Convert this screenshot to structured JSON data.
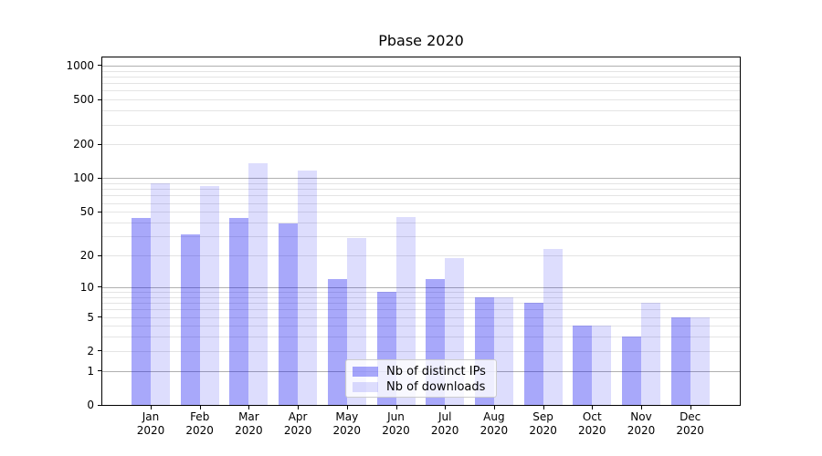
{
  "figure": {
    "background": "#ffffff"
  },
  "chart_data": {
    "type": "bar",
    "title": "Pbase 2020",
    "categories": [
      "Jan",
      "Feb",
      "Mar",
      "Apr",
      "May",
      "Jun",
      "Jul",
      "Aug",
      "Sep",
      "Oct",
      "Nov",
      "Dec"
    ],
    "category_year": "2020",
    "series": [
      {
        "name": "Nb of distinct IPs",
        "color": "rgba(0,0,240,0.34)",
        "values": [
          44,
          31,
          44,
          39,
          12,
          9,
          12,
          8,
          7,
          4,
          3,
          5
        ]
      },
      {
        "name": "Nb of downloads",
        "color": "rgba(0,0,240,0.135)",
        "values": [
          90,
          85,
          135,
          118,
          29,
          45,
          19,
          8,
          23,
          4,
          7,
          5
        ]
      }
    ],
    "xlabel": "",
    "ylabel": "",
    "yscale": "log1p",
    "ylim": [
      0,
      1182
    ],
    "yticks": [
      0,
      1,
      2,
      5,
      10,
      20,
      50,
      100,
      200,
      500,
      1000
    ],
    "major_gridlines": [
      1,
      10,
      100,
      1000
    ],
    "minor_gridlines": [
      2,
      3,
      4,
      5,
      6,
      7,
      8,
      9,
      20,
      30,
      40,
      50,
      60,
      70,
      80,
      90,
      200,
      300,
      400,
      500,
      600,
      700,
      800,
      900
    ],
    "grid": true,
    "legend_position": "lower-center-inside"
  },
  "colors": {
    "major_grid": "#b0b0b0",
    "minor_grid": "#e4e4e4",
    "spine": "#000000",
    "legend_border": "#cccccc",
    "bar_dark": "rgba(0,0,240,0.34)",
    "bar_light": "rgba(0,0,240,0.135)"
  }
}
